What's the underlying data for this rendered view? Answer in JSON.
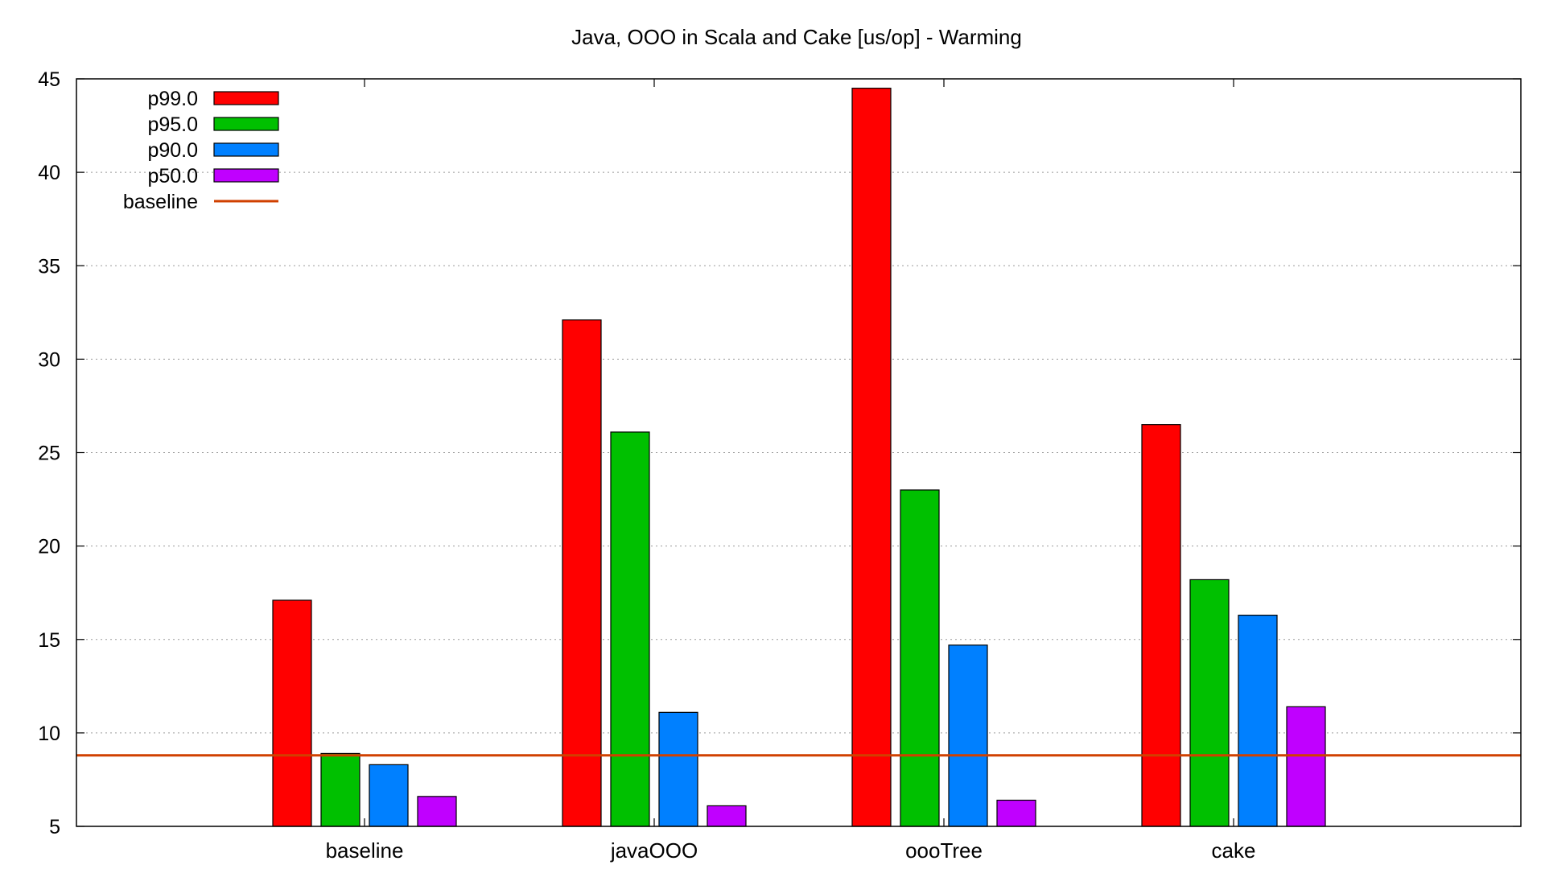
{
  "chart_data": {
    "type": "bar",
    "title": "Java, OOO in Scala and Cake [us/op] - Warming",
    "xlabel": "",
    "ylabel": "",
    "categories": [
      "baseline",
      "javaOOO",
      "oooTree",
      "cake"
    ],
    "ylim": [
      5,
      45
    ],
    "yticks": [
      5,
      10,
      15,
      20,
      25,
      30,
      35,
      40,
      45
    ],
    "grid": true,
    "legend_position": "top-left",
    "series": [
      {
        "name": "p99.0",
        "color": "#ff0000",
        "values": [
          17.1,
          32.1,
          44.5,
          26.5
        ]
      },
      {
        "name": "p95.0",
        "color": "#00c000",
        "values": [
          8.9,
          26.1,
          23.0,
          18.2
        ]
      },
      {
        "name": "p90.0",
        "color": "#0080ff",
        "values": [
          8.3,
          11.1,
          14.7,
          16.3
        ]
      },
      {
        "name": "p50.0",
        "color": "#c000ff",
        "values": [
          6.6,
          6.1,
          6.4,
          11.4
        ]
      }
    ],
    "reference_lines": [
      {
        "name": "baseline",
        "color": "#d04000",
        "value": 8.8
      }
    ]
  }
}
